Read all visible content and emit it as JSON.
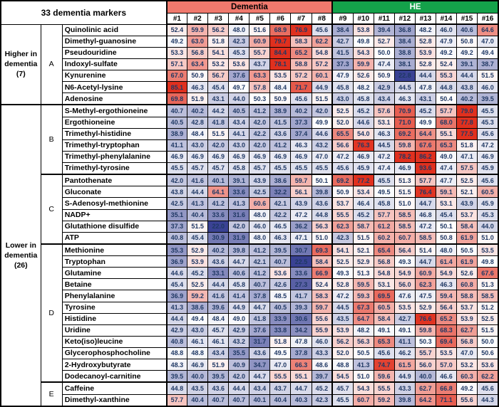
{
  "title": "33 dementia markers",
  "header_groups": [
    {
      "label": "Dementia",
      "color": "#F0796D",
      "text_color": "#000000",
      "span": 8
    },
    {
      "label": "HE",
      "color": "#14A24A",
      "text_color": "#FFFFFF",
      "span": 8
    }
  ],
  "row_groups": [
    {
      "label": "Higher in\ndementia\n(7)",
      "span": 7
    },
    {
      "label": "Lower in\ndementia\n(26)",
      "span": 26
    }
  ],
  "letter_groups": [
    {
      "label": "A",
      "span": 7
    },
    {
      "label": "B",
      "span": 6
    },
    {
      "label": "C",
      "span": 6
    },
    {
      "label": "D",
      "span": 12
    },
    {
      "label": "E",
      "span": 2
    }
  ],
  "chart_data": {
    "type": "heatmap",
    "title": "33 dementia markers",
    "columns": [
      "#1",
      "#2",
      "#3",
      "#4",
      "#5",
      "#6",
      "#7",
      "#8",
      "#9",
      "#10",
      "#11",
      "#12",
      "#13",
      "#14",
      "#15",
      "#16"
    ],
    "column_groups": {
      "Dementia": [
        "#1",
        "#2",
        "#3",
        "#4",
        "#5",
        "#6",
        "#7",
        "#8"
      ],
      "HE": [
        "#9",
        "#10",
        "#11",
        "#12",
        "#13",
        "#14",
        "#15",
        "#16"
      ]
    },
    "color_scale": {
      "low": "#3A4294",
      "mid": "#FFFFFF",
      "high": "#E0301E",
      "midpoint": 50,
      "span": 27
    },
    "text_color": "#1F3864",
    "rows": [
      {
        "marker": "Quinolinic acid",
        "letter": "A",
        "direction": "Higher in dementia",
        "values": [
          52.4,
          59.9,
          56.2,
          48.0,
          51.6,
          68.9,
          76.9,
          45.6,
          38.4,
          53.8,
          39.4,
          36.8,
          48.2,
          46.0,
          40.6,
          64.6
        ]
      },
      {
        "marker": "Dimethyl-guanosine",
        "letter": "A",
        "direction": "Higher in dementia",
        "values": [
          49.2,
          63.0,
          51.8,
          42.3,
          60.9,
          79.7,
          58.3,
          62.2,
          42.7,
          49.8,
          52.7,
          38.4,
          52.8,
          47.9,
          50.8,
          47.0
        ]
      },
      {
        "marker": "Pseudouridine",
        "letter": "A",
        "direction": "Higher in dementia",
        "values": [
          53.3,
          56.8,
          54.1,
          45.3,
          55.7,
          84.4,
          65.2,
          54.8,
          41.5,
          54.3,
          50.0,
          38.8,
          53.9,
          49.2,
          49.2,
          49.4
        ]
      },
      {
        "marker": "Indoxyl-sulfate",
        "letter": "A",
        "direction": "Higher in dementia",
        "values": [
          57.1,
          63.4,
          53.2,
          53.6,
          43.7,
          78.1,
          58.8,
          57.2,
          37.3,
          59.9,
          47.4,
          38.1,
          52.8,
          52.4,
          39.1,
          38.7
        ]
      },
      {
        "marker": "Kynurenine",
        "letter": "A",
        "direction": "Higher in dementia",
        "values": [
          67.0,
          50.9,
          56.7,
          37.6,
          63.3,
          53.5,
          57.2,
          60.1,
          47.9,
          52.6,
          50.9,
          22.8,
          44.4,
          55.3,
          44.4,
          51.5
        ]
      },
      {
        "marker": "N6-Acetyl-lysine",
        "letter": "A",
        "direction": "Higher in dementia",
        "values": [
          85.1,
          46.3,
          45.4,
          49.7,
          57.8,
          48.4,
          71.7,
          44.9,
          45.8,
          48.2,
          42.9,
          44.5,
          47.8,
          44.8,
          43.8,
          46.0
        ]
      },
      {
        "marker": "Adenosine",
        "letter": "A",
        "direction": "Higher in dementia",
        "values": [
          69.8,
          51.9,
          43.1,
          44.0,
          50.3,
          50.9,
          45.6,
          51.5,
          43.0,
          45.8,
          43.4,
          46.3,
          43.1,
          50.4,
          40.2,
          39.5
        ]
      },
      {
        "marker": "S-Methyl-ergothioneine",
        "letter": "B",
        "direction": "Lower in dementia",
        "values": [
          40.7,
          40.2,
          44.2,
          40.5,
          41.2,
          38.9,
          40.2,
          42.0,
          52.5,
          45.2,
          57.6,
          70.9,
          45.2,
          57.7,
          79.0,
          45.5
        ]
      },
      {
        "marker": "Ergothioneine",
        "letter": "B",
        "direction": "Lower in dementia",
        "values": [
          40.5,
          42.8,
          41.8,
          43.4,
          42.0,
          41.5,
          37.3,
          49.9,
          52.0,
          44.6,
          53.1,
          71.0,
          49.9,
          68.0,
          77.8,
          45.3
        ]
      },
      {
        "marker": "Trimethyl-histidine",
        "letter": "B",
        "direction": "Lower in dementia",
        "values": [
          38.9,
          48.4,
          51.5,
          44.1,
          42.2,
          43.6,
          37.4,
          44.6,
          65.5,
          54.0,
          46.3,
          69.2,
          64.4,
          55.1,
          77.5,
          45.6
        ]
      },
      {
        "marker": "Trimethyl-tryptophan",
        "letter": "B",
        "direction": "Lower in dementia",
        "values": [
          41.1,
          43.0,
          42.0,
          43.0,
          42.0,
          41.2,
          46.3,
          43.2,
          56.6,
          76.3,
          44.5,
          59.8,
          67.6,
          65.3,
          51.8,
          47.2
        ]
      },
      {
        "marker": "Trimethyl-phenylalanine",
        "letter": "B",
        "direction": "Lower in dementia",
        "values": [
          46.9,
          46.9,
          46.9,
          46.9,
          46.9,
          46.9,
          46.9,
          47.0,
          47.2,
          46.9,
          47.2,
          78.2,
          86.2,
          49.0,
          47.1,
          46.9
        ]
      },
      {
        "marker": "Trimethyl-tyrosine",
        "letter": "B",
        "direction": "Lower in dementia",
        "values": [
          45.5,
          45.7,
          45.7,
          45.8,
          45.7,
          45.5,
          45.5,
          45.5,
          45.6,
          45.9,
          47.4,
          46.9,
          93.6,
          47.4,
          57.5,
          45.9
        ]
      },
      {
        "marker": "Pantothenate",
        "letter": "C",
        "direction": "Lower in dementia",
        "values": [
          42.0,
          41.6,
          40.1,
          39.1,
          43.9,
          38.6,
          59.7,
          50.1,
          69.2,
          77.2,
          45.5,
          51.3,
          57.7,
          47.7,
          52.5,
          45.6
        ]
      },
      {
        "marker": "Gluconate",
        "letter": "C",
        "direction": "Lower in dementia",
        "values": [
          43.8,
          44.4,
          64.1,
          33.6,
          42.5,
          32.2,
          56.1,
          39.8,
          50.9,
          53.4,
          49.5,
          51.5,
          76.4,
          59.1,
          52.1,
          60.5
        ]
      },
      {
        "marker": "S-Adenosyl-methionine",
        "letter": "C",
        "direction": "Lower in dementia",
        "values": [
          42.5,
          41.3,
          41.2,
          41.3,
          60.6,
          42.1,
          43.9,
          43.6,
          53.7,
          46.4,
          45.8,
          51.0,
          44.7,
          53.1,
          43.9,
          45.9
        ]
      },
      {
        "marker": "NADP+",
        "letter": "C",
        "direction": "Lower in dementia",
        "values": [
          35.1,
          40.4,
          33.6,
          31.6,
          48.0,
          42.2,
          47.2,
          44.8,
          55.5,
          45.2,
          57.7,
          58.5,
          46.8,
          45.4,
          53.7,
          45.3
        ]
      },
      {
        "marker": "Glutathione disulfide",
        "letter": "C",
        "direction": "Lower in dementia",
        "values": [
          37.3,
          51.5,
          22.0,
          42.0,
          46.0,
          46.5,
          36.2,
          56.3,
          62.3,
          58.7,
          61.2,
          58.5,
          47.2,
          50.1,
          58.4,
          44.0
        ]
      },
      {
        "marker": "ATP",
        "letter": "C",
        "direction": "Lower in dementia",
        "values": [
          40.8,
          45.4,
          30.9,
          31.9,
          48.0,
          46.3,
          47.1,
          51.0,
          42.3,
          51.5,
          60.2,
          60.7,
          58.5,
          50.8,
          61.9,
          51.0
        ]
      },
      {
        "marker": "Methionine",
        "letter": "D",
        "direction": "Lower in dementia",
        "values": [
          35.3,
          52.9,
          40.2,
          39.8,
          41.2,
          39.5,
          30.7,
          69.3,
          54.1,
          52.1,
          65.4,
          56.4,
          51.4,
          48.0,
          50.5,
          53.5
        ]
      },
      {
        "marker": "Tryptophan",
        "letter": "D",
        "direction": "Lower in dementia",
        "values": [
          36.9,
          53.9,
          43.6,
          44.7,
          42.1,
          40.7,
          22.5,
          58.4,
          52.5,
          52.9,
          56.8,
          49.3,
          44.7,
          61.4,
          61.9,
          49.8
        ]
      },
      {
        "marker": "Glutamine",
        "letter": "D",
        "direction": "Lower in dementia",
        "values": [
          44.6,
          45.2,
          33.1,
          40.6,
          41.2,
          53.6,
          33.6,
          66.9,
          49.3,
          51.3,
          54.8,
          54.9,
          60.9,
          54.9,
          52.6,
          67.6
        ]
      },
      {
        "marker": "Betaine",
        "letter": "D",
        "direction": "Lower in dementia",
        "values": [
          45.4,
          52.5,
          44.4,
          45.8,
          40.7,
          42.6,
          27.3,
          52.4,
          52.8,
          59.5,
          53.1,
          56.0,
          62.3,
          46.3,
          60.8,
          51.3
        ]
      },
      {
        "marker": "Phenylalanine",
        "letter": "D",
        "direction": "Lower in dementia",
        "values": [
          36.9,
          59.2,
          41.6,
          41.4,
          37.8,
          48.5,
          41.7,
          58.3,
          47.2,
          59.3,
          69.5,
          47.6,
          47.5,
          59.4,
          58.8,
          58.5
        ]
      },
      {
        "marker": "Tyrosine",
        "letter": "D",
        "direction": "Lower in dementia",
        "values": [
          41.3,
          38.6,
          39.6,
          44.9,
          44.7,
          40.5,
          39.3,
          59.7,
          44.5,
          67.3,
          60.5,
          53.5,
          52.9,
          56.4,
          53.7,
          51.2
        ]
      },
      {
        "marker": "Histidine",
        "letter": "D",
        "direction": "Lower in dementia",
        "values": [
          44.4,
          49.4,
          48.4,
          49.0,
          41.8,
          33.9,
          30.6,
          55.6,
          43.5,
          64.7,
          58.4,
          42.7,
          76.6,
          65.2,
          53.9,
          52.5
        ]
      },
      {
        "marker": "Uridine",
        "letter": "D",
        "direction": "Lower in dementia",
        "values": [
          42.9,
          43.0,
          45.7,
          42.9,
          37.6,
          33.8,
          34.2,
          55.9,
          53.9,
          48.2,
          49.1,
          49.1,
          59.8,
          68.3,
          62.7,
          51.5
        ]
      },
      {
        "marker": "Keto(iso)leucine",
        "letter": "D",
        "direction": "Lower in dementia",
        "values": [
          40.8,
          46.1,
          46.1,
          43.2,
          31.7,
          51.8,
          47.8,
          46.0,
          56.2,
          56.3,
          65.3,
          41.1,
          50.3,
          69.4,
          56.8,
          50.0
        ]
      },
      {
        "marker": "Glycerophosphocholine",
        "letter": "D",
        "direction": "Lower in dementia",
        "values": [
          48.8,
          48.8,
          43.4,
          35.5,
          43.6,
          49.5,
          37.8,
          43.3,
          52.0,
          50.5,
          45.6,
          46.2,
          55.7,
          53.5,
          47.0,
          50.6
        ]
      },
      {
        "marker": "2-Hydroxybutyrate",
        "letter": "D",
        "direction": "Lower in dementia",
        "values": [
          48.3,
          46.9,
          51.9,
          40.9,
          34.7,
          47.0,
          66.3,
          48.6,
          48.8,
          41.3,
          74.7,
          61.5,
          56.0,
          57.0,
          53.2,
          53.6
        ]
      },
      {
        "marker": "Dodecanoyl-carnitine",
        "letter": "D",
        "direction": "Lower in dementia",
        "values": [
          39.5,
          40.0,
          39.5,
          42.0,
          44.7,
          55.5,
          55.1,
          39.7,
          54.5,
          51.0,
          59.6,
          44.9,
          40.0,
          46.6,
          60.3,
          62.2
        ]
      },
      {
        "marker": "Caffeine",
        "letter": "E",
        "direction": "Lower in dementia",
        "values": [
          44.8,
          43.5,
          43.6,
          44.4,
          43.4,
          43.7,
          44.7,
          45.2,
          45.7,
          54.3,
          55.5,
          43.3,
          62.7,
          66.8,
          49.2,
          45.6
        ]
      },
      {
        "marker": "Dimethyl-xanthine",
        "letter": "E",
        "direction": "Lower in dementia",
        "values": [
          57.7,
          40.4,
          40.7,
          40.7,
          40.1,
          40.4,
          40.3,
          42.3,
          45.5,
          60.7,
          59.2,
          39.8,
          64.2,
          71.1,
          55.6,
          44.3
        ]
      }
    ]
  }
}
